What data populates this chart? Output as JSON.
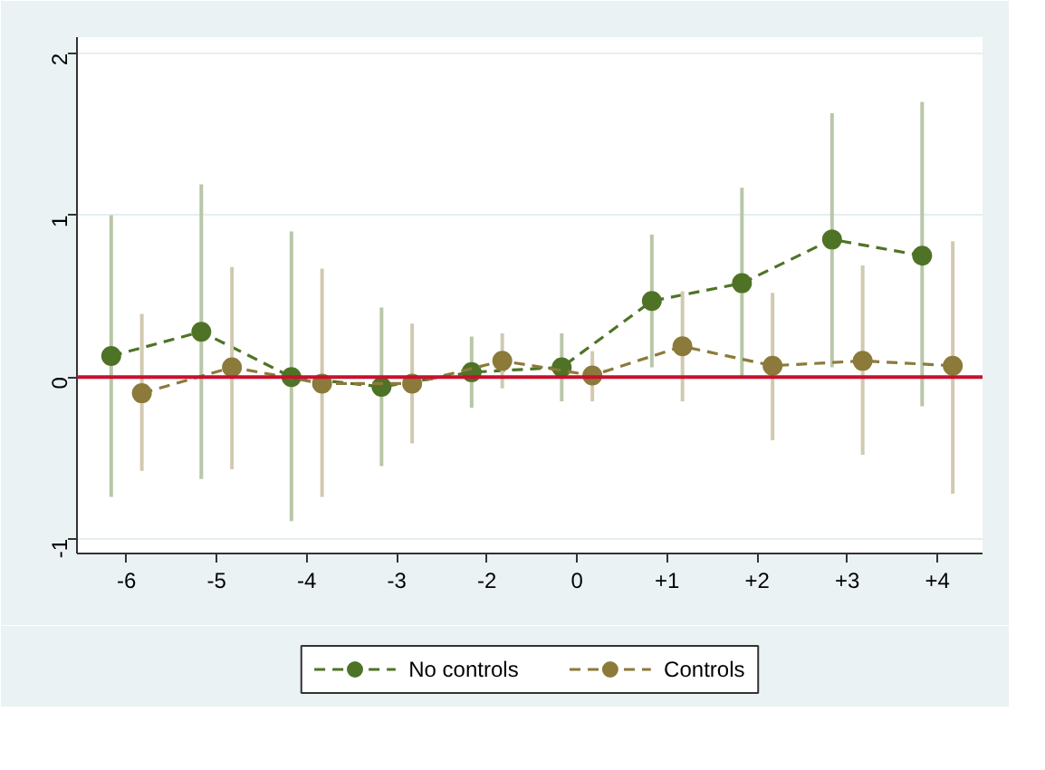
{
  "chart_data": {
    "type": "line",
    "categories": [
      "-6",
      "-5",
      "-4",
      "-3",
      "-2",
      "0",
      "+1",
      "+2",
      "+3",
      "+4"
    ],
    "series": [
      {
        "name": "No controls",
        "color": "#4f7326",
        "values": [
          0.13,
          0.28,
          0.0,
          -0.06,
          0.03,
          0.06,
          0.47,
          0.58,
          0.85,
          0.75
        ],
        "errors": [
          [
            -0.74,
            1.0
          ],
          [
            -0.63,
            1.19
          ],
          [
            -0.89,
            0.9
          ],
          [
            -0.55,
            0.43
          ],
          [
            -0.19,
            0.25
          ],
          [
            -0.15,
            0.27
          ],
          [
            0.06,
            0.88
          ],
          [
            -0.01,
            1.17
          ],
          [
            0.06,
            1.63
          ],
          [
            -0.18,
            1.7
          ]
        ]
      },
      {
        "name": "Controls",
        "color": "#8c7a3a",
        "values": [
          -0.1,
          0.06,
          -0.04,
          -0.04,
          0.1,
          0.01,
          0.19,
          0.07,
          0.1,
          0.07
        ],
        "errors": [
          [
            -0.58,
            0.39
          ],
          [
            -0.57,
            0.68
          ],
          [
            -0.74,
            0.67
          ],
          [
            -0.41,
            0.33
          ],
          [
            -0.07,
            0.27
          ],
          [
            -0.15,
            0.16
          ],
          [
            -0.15,
            0.53
          ],
          [
            -0.39,
            0.52
          ],
          [
            -0.48,
            0.69
          ],
          [
            -0.72,
            0.84
          ]
        ]
      }
    ],
    "ylim": [
      -1.09,
      2.1
    ],
    "yticks": [
      -1,
      0,
      1,
      2
    ],
    "grid": "y",
    "legend": "bottom",
    "marker": "circle",
    "line_style": "dashed",
    "ref_lines": [
      {
        "axis": "y",
        "value": 0,
        "color": "#c8102e"
      }
    ]
  }
}
